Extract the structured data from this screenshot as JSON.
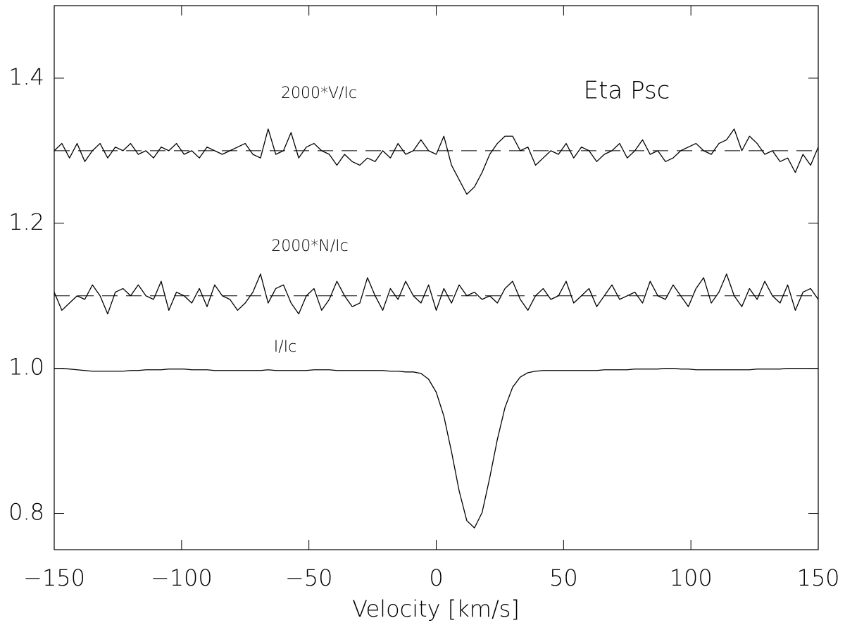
{
  "chart_data": {
    "type": "line",
    "title": "Eta Psc",
    "x_label": "Velocity [km/s]",
    "x": [
      -150,
      -147,
      -144,
      -141,
      -138,
      -135,
      -132,
      -129,
      -126,
      -123,
      -120,
      -117,
      -114,
      -111,
      -108,
      -105,
      -102,
      -99,
      -96,
      -93,
      -90,
      -87,
      -84,
      -81,
      -78,
      -75,
      -72,
      -69,
      -66,
      -63,
      -60,
      -57,
      -54,
      -51,
      -48,
      -45,
      -42,
      -39,
      -36,
      -33,
      -30,
      -27,
      -24,
      -21,
      -18,
      -15,
      -12,
      -9,
      -6,
      -3,
      0,
      3,
      6,
      9,
      12,
      15,
      18,
      21,
      24,
      27,
      30,
      33,
      36,
      39,
      42,
      45,
      48,
      51,
      54,
      57,
      60,
      63,
      66,
      69,
      72,
      75,
      78,
      81,
      84,
      87,
      90,
      93,
      96,
      99,
      102,
      105,
      108,
      111,
      114,
      117,
      120,
      123,
      126,
      129,
      132,
      135,
      138,
      141,
      144,
      147,
      150
    ],
    "series": [
      {
        "name": "2000*V/Ic",
        "color": "#000000",
        "values": [
          1.3,
          1.31,
          1.29,
          1.31,
          1.285,
          1.3,
          1.31,
          1.29,
          1.305,
          1.3,
          1.31,
          1.295,
          1.3,
          1.29,
          1.305,
          1.3,
          1.31,
          1.295,
          1.3,
          1.29,
          1.305,
          1.3,
          1.295,
          1.3,
          1.305,
          1.31,
          1.295,
          1.29,
          1.33,
          1.295,
          1.3,
          1.325,
          1.29,
          1.305,
          1.31,
          1.3,
          1.295,
          1.28,
          1.295,
          1.285,
          1.28,
          1.29,
          1.285,
          1.3,
          1.29,
          1.31,
          1.295,
          1.3,
          1.315,
          1.3,
          1.295,
          1.32,
          1.28,
          1.26,
          1.24,
          1.25,
          1.27,
          1.295,
          1.31,
          1.32,
          1.32,
          1.3,
          1.305,
          1.28,
          1.29,
          1.3,
          1.295,
          1.31,
          1.29,
          1.305,
          1.3,
          1.285,
          1.295,
          1.3,
          1.31,
          1.29,
          1.3,
          1.315,
          1.295,
          1.3,
          1.285,
          1.29,
          1.3,
          1.305,
          1.31,
          1.3,
          1.295,
          1.31,
          1.315,
          1.33,
          1.3,
          1.32,
          1.31,
          1.295,
          1.3,
          1.285,
          1.29,
          1.27,
          1.295,
          1.28,
          1.305
        ]
      },
      {
        "name": "2000*N/Ic",
        "color": "#000000",
        "values": [
          1.105,
          1.08,
          1.09,
          1.1,
          1.095,
          1.115,
          1.1,
          1.075,
          1.105,
          1.11,
          1.1,
          1.115,
          1.1,
          1.095,
          1.12,
          1.08,
          1.105,
          1.1,
          1.09,
          1.11,
          1.085,
          1.115,
          1.1,
          1.095,
          1.08,
          1.09,
          1.105,
          1.13,
          1.09,
          1.11,
          1.115,
          1.09,
          1.075,
          1.1,
          1.11,
          1.08,
          1.095,
          1.12,
          1.1,
          1.085,
          1.09,
          1.125,
          1.1,
          1.08,
          1.11,
          1.095,
          1.12,
          1.1,
          1.09,
          1.115,
          1.08,
          1.11,
          1.09,
          1.115,
          1.1,
          1.105,
          1.095,
          1.1,
          1.09,
          1.11,
          1.12,
          1.095,
          1.08,
          1.1,
          1.11,
          1.095,
          1.1,
          1.12,
          1.09,
          1.1,
          1.11,
          1.085,
          1.1,
          1.115,
          1.095,
          1.1,
          1.105,
          1.09,
          1.12,
          1.1,
          1.095,
          1.115,
          1.1,
          1.085,
          1.11,
          1.125,
          1.09,
          1.105,
          1.13,
          1.1,
          1.085,
          1.11,
          1.095,
          1.12,
          1.1,
          1.09,
          1.115,
          1.08,
          1.105,
          1.11,
          1.095
        ]
      },
      {
        "name": "I/Ic",
        "color": "#000000",
        "values": [
          1.0,
          1.0,
          0.999,
          0.998,
          0.997,
          0.996,
          0.996,
          0.996,
          0.996,
          0.996,
          0.997,
          0.997,
          0.998,
          0.998,
          0.998,
          0.999,
          0.999,
          0.999,
          0.998,
          0.998,
          0.998,
          0.997,
          0.997,
          0.997,
          0.997,
          0.997,
          0.997,
          0.997,
          0.998,
          0.997,
          0.997,
          0.997,
          0.997,
          0.997,
          0.998,
          0.998,
          0.998,
          0.997,
          0.997,
          0.997,
          0.997,
          0.997,
          0.997,
          0.997,
          0.996,
          0.996,
          0.995,
          0.995,
          0.993,
          0.985,
          0.967,
          0.934,
          0.885,
          0.831,
          0.79,
          0.78,
          0.801,
          0.849,
          0.902,
          0.946,
          0.974,
          0.988,
          0.994,
          0.996,
          0.997,
          0.997,
          0.997,
          0.997,
          0.997,
          0.997,
          0.997,
          0.997,
          0.998,
          0.998,
          0.998,
          0.998,
          0.999,
          0.999,
          0.999,
          0.999,
          1.0,
          1.0,
          0.999,
          0.999,
          0.998,
          0.998,
          0.998,
          0.998,
          0.998,
          0.998,
          0.998,
          0.998,
          0.999,
          0.999,
          0.999,
          0.999,
          1.0,
          1.0,
          1.0,
          1.0,
          1.0
        ]
      }
    ],
    "hlines": [
      1.3,
      1.1
    ],
    "xlim": [
      -150,
      150
    ],
    "ylim": [
      0.75,
      1.5
    ],
    "xticks": [
      {
        "value": -150,
        "label": "−150"
      },
      {
        "value": -100,
        "label": "−100"
      },
      {
        "value": -50,
        "label": "−50"
      },
      0,
      50,
      100,
      150
    ],
    "yticks": [
      0.8,
      {
        "value": 1.0,
        "label": "1.0"
      },
      1.2,
      1.4
    ]
  }
}
